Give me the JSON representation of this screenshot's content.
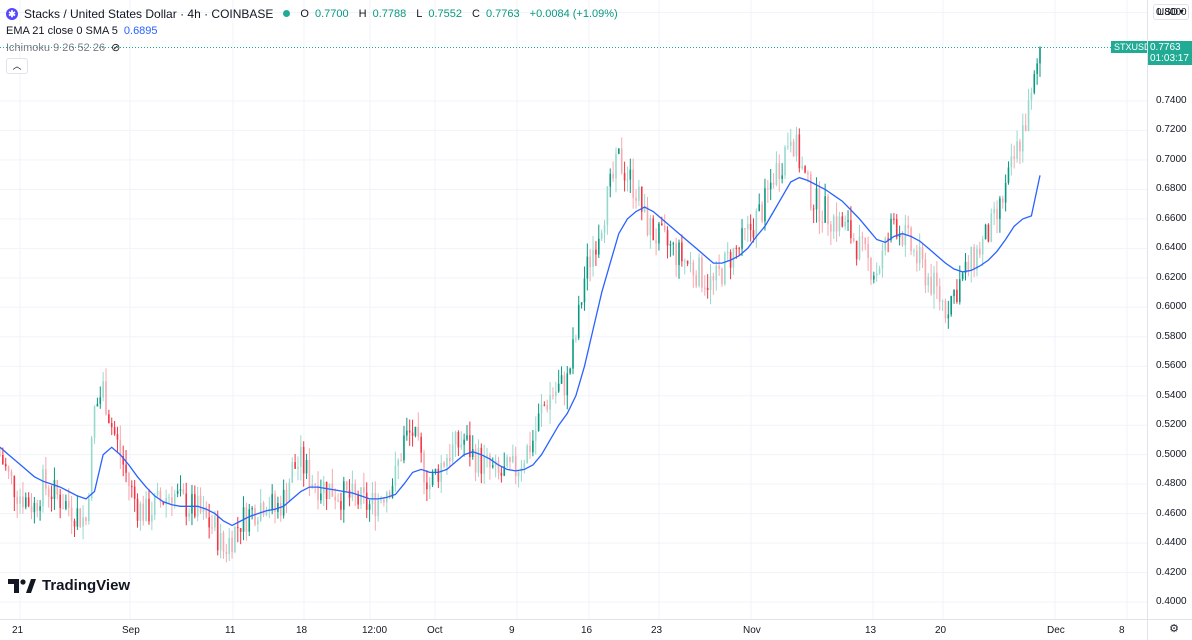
{
  "header": {
    "symbol_icon": "stacks-logo-icon",
    "title": "Stacks / United States Dollar · 4h · COINBASE",
    "ohlc": [
      {
        "k": "O",
        "v": "0.7700"
      },
      {
        "k": "H",
        "v": "0.7788"
      },
      {
        "k": "L",
        "v": "0.7552"
      },
      {
        "k": "C",
        "v": "0.7763"
      }
    ],
    "change": "+0.0084 (+1.09%)",
    "indicator1_name": "EMA 21 close 0 SMA 5",
    "indicator1_value": "0.6895",
    "indicator2_name": "Ichimoku 9 26 52 26"
  },
  "price_scale": {
    "currency": "USD",
    "labels": [
      "0.8000",
      "0.7400",
      "0.7200",
      "0.7000",
      "0.6800",
      "0.6600",
      "0.6400",
      "0.6200",
      "0.6000",
      "0.5800",
      "0.5600",
      "0.5400",
      "0.5200",
      "0.5000",
      "0.4800",
      "0.4600",
      "0.4400",
      "0.4200",
      "0.4000"
    ],
    "last_price": "0.7763",
    "countdown": "01:03:17",
    "symbol_tag": "STXUSD"
  },
  "time_scale": {
    "labels": [
      "21",
      "Sep",
      "11",
      "18",
      "12:00",
      "Oct",
      "9",
      "16",
      "23",
      "Nov",
      "13",
      "20",
      "Dec",
      "8"
    ]
  },
  "brand": {
    "name": "TradingView",
    "icon": "tradingview-logo-icon"
  },
  "colors": {
    "up": "#089981",
    "down": "#f23645",
    "up_light": "#98d9cd",
    "down_light": "#f7a9b0",
    "ema": "#2962ff",
    "accent": "#22ab94"
  },
  "chart_data": {
    "type": "candlestick",
    "title": "Stacks / United States Dollar · 4h · COINBASE",
    "ylim": [
      0.39,
      0.8
    ],
    "y_ticks": [
      0.8,
      0.74,
      0.72,
      0.7,
      0.68,
      0.66,
      0.64,
      0.62,
      0.6,
      0.58,
      0.56,
      0.54,
      0.52,
      0.5,
      0.48,
      0.46,
      0.44,
      0.42,
      0.4
    ],
    "x_tick_labels": [
      "21",
      "Sep",
      "11",
      "18",
      "12:00",
      "Oct",
      "9",
      "16",
      "23",
      "Nov",
      "13",
      "20",
      "Dec",
      "8"
    ],
    "last_close": 0.7763,
    "series": [
      {
        "name": "price",
        "values": [
          0.5,
          0.485,
          0.475,
          0.47,
          0.465,
          0.48,
          0.475,
          0.47,
          0.465,
          0.46,
          0.455,
          0.53,
          0.545,
          0.52,
          0.5,
          0.48,
          0.465,
          0.46,
          0.465,
          0.47,
          0.475,
          0.468,
          0.465,
          0.462,
          0.455,
          0.45,
          0.435,
          0.445,
          0.455,
          0.46,
          0.465,
          0.47,
          0.462,
          0.47,
          0.49,
          0.495,
          0.485,
          0.48,
          0.478,
          0.475,
          0.472,
          0.47,
          0.468,
          0.465,
          0.47,
          0.478,
          0.485,
          0.51,
          0.515,
          0.495,
          0.48,
          0.49,
          0.5,
          0.505,
          0.51,
          0.5,
          0.495,
          0.49,
          0.485,
          0.488,
          0.49,
          0.5,
          0.51,
          0.53,
          0.54,
          0.545,
          0.55,
          0.58,
          0.62,
          0.64,
          0.66,
          0.68,
          0.7,
          0.69,
          0.68,
          0.66,
          0.65,
          0.645,
          0.64,
          0.635,
          0.63,
          0.625,
          0.62,
          0.615,
          0.625,
          0.635,
          0.64,
          0.65,
          0.66,
          0.67,
          0.69,
          0.7,
          0.72,
          0.7,
          0.68,
          0.67,
          0.665,
          0.66,
          0.655,
          0.65,
          0.64,
          0.63,
          0.625,
          0.64,
          0.66,
          0.65,
          0.64,
          0.63,
          0.62,
          0.61,
          0.6,
          0.61,
          0.62,
          0.63,
          0.64,
          0.65,
          0.66,
          0.68,
          0.7,
          0.72,
          0.74,
          0.7763
        ]
      },
      {
        "name": "EMA 21",
        "values": [
          0.505,
          0.5,
          0.495,
          0.49,
          0.485,
          0.482,
          0.48,
          0.478,
          0.475,
          0.472,
          0.47,
          0.475,
          0.5,
          0.505,
          0.5,
          0.493,
          0.485,
          0.478,
          0.472,
          0.468,
          0.466,
          0.465,
          0.465,
          0.465,
          0.463,
          0.46,
          0.455,
          0.452,
          0.455,
          0.458,
          0.46,
          0.462,
          0.463,
          0.465,
          0.47,
          0.475,
          0.478,
          0.478,
          0.477,
          0.476,
          0.475,
          0.474,
          0.472,
          0.47,
          0.47,
          0.471,
          0.473,
          0.48,
          0.488,
          0.49,
          0.488,
          0.488,
          0.49,
          0.495,
          0.5,
          0.502,
          0.5,
          0.497,
          0.493,
          0.49,
          0.489,
          0.49,
          0.493,
          0.5,
          0.51,
          0.52,
          0.528,
          0.54,
          0.56,
          0.585,
          0.61,
          0.63,
          0.65,
          0.66,
          0.665,
          0.668,
          0.665,
          0.66,
          0.655,
          0.65,
          0.645,
          0.64,
          0.635,
          0.63,
          0.63,
          0.632,
          0.635,
          0.64,
          0.648,
          0.655,
          0.665,
          0.675,
          0.685,
          0.688,
          0.686,
          0.683,
          0.68,
          0.676,
          0.672,
          0.666,
          0.66,
          0.653,
          0.646,
          0.644,
          0.648,
          0.65,
          0.648,
          0.645,
          0.64,
          0.635,
          0.63,
          0.626,
          0.624,
          0.625,
          0.628,
          0.632,
          0.638,
          0.646,
          0.655,
          0.66,
          0.662,
          0.6895
        ]
      }
    ]
  }
}
